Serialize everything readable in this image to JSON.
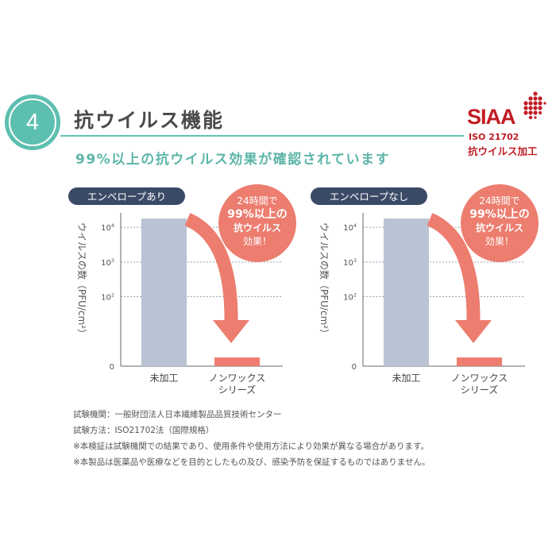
{
  "header": {
    "step_number": "4",
    "title": "抗ウイルス機能",
    "subtitle": "99%以上の抗ウイルス効果が確認されています"
  },
  "certification": {
    "logo": "SIAA",
    "standard": "ISO 21702",
    "label": "抗ウイルス加工"
  },
  "colors": {
    "teal": "#5dbfb0",
    "bar_untreated": "#b9c3d3",
    "bar_treated": "#ec7d6f",
    "callout": "#ec7d6f",
    "panel_label_bg": "#3a4a66",
    "siaa_red": "#c11d24"
  },
  "chart_data": [
    {
      "type": "bar",
      "panel_label": "エンベロープあり",
      "ylabel": "ウイルスの数（PFU/cm²）",
      "y_ticks": [
        "0",
        "10²",
        "10³",
        "10⁴"
      ],
      "ylim_log10": [
        0,
        4.3
      ],
      "categories": [
        "未加工",
        "ノンワックス\nシリーズ"
      ],
      "category_lines": [
        [
          "未加工"
        ],
        [
          "ノンワックス",
          "シリーズ"
        ]
      ],
      "values_log10": [
        4.25,
        0.25
      ],
      "callout_lines": [
        "24時間で",
        "99%以上の",
        "抗ウイルス",
        "効果！"
      ]
    },
    {
      "type": "bar",
      "panel_label": "エンベロープなし",
      "ylabel": "ウイルスの数（PFU/cm²）",
      "y_ticks": [
        "0",
        "10²",
        "10³",
        "10⁴"
      ],
      "ylim_log10": [
        0,
        4.3
      ],
      "categories": [
        "未加工",
        "ノンワックス\nシリーズ"
      ],
      "category_lines": [
        [
          "未加工"
        ],
        [
          "ノンワックス",
          "シリーズ"
        ]
      ],
      "values_log10": [
        4.25,
        0.25
      ],
      "callout_lines": [
        "24時間で",
        "99%以上の",
        "抗ウイルス",
        "効果！"
      ]
    }
  ],
  "notes": [
    "試験機関：一般財団法人日本繊維製品品質技術センター",
    "試験方法：ISO21702法（国際規格）",
    "※本検証は試験機関での結果であり、使用条件や使用方法により効果が異なる場合があります。",
    "※本製品は医薬品や医療などを目的としたもの及び、感染予防を保証するものではありません。"
  ]
}
